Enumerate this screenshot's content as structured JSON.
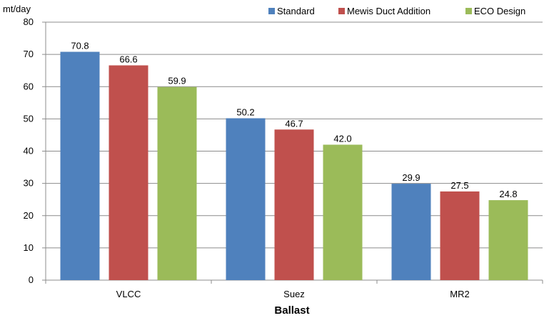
{
  "chart_data": {
    "type": "bar",
    "ylabel": "mt/day",
    "xlabel": "Ballast",
    "ylim": [
      0,
      80
    ],
    "yticks": [
      0,
      10,
      20,
      30,
      40,
      50,
      60,
      70,
      80
    ],
    "grid": true,
    "legend_position": "top-right",
    "categories": [
      "VLCC",
      "Suez",
      "MR2"
    ],
    "series": [
      {
        "name": "Standard",
        "color": "#4F81BD",
        "values": [
          70.8,
          50.2,
          29.9
        ],
        "labels": [
          "70.8",
          "50.2",
          "29.9"
        ]
      },
      {
        "name": "Mewis Duct Addition",
        "color": "#C0504D",
        "values": [
          66.6,
          46.7,
          27.5
        ],
        "labels": [
          "66.6",
          "46.7",
          "27.5"
        ]
      },
      {
        "name": "ECO Design",
        "color": "#9BBB59",
        "values": [
          59.9,
          42.0,
          24.8
        ],
        "labels": [
          "59.9",
          "42.0",
          "24.8"
        ]
      }
    ]
  }
}
